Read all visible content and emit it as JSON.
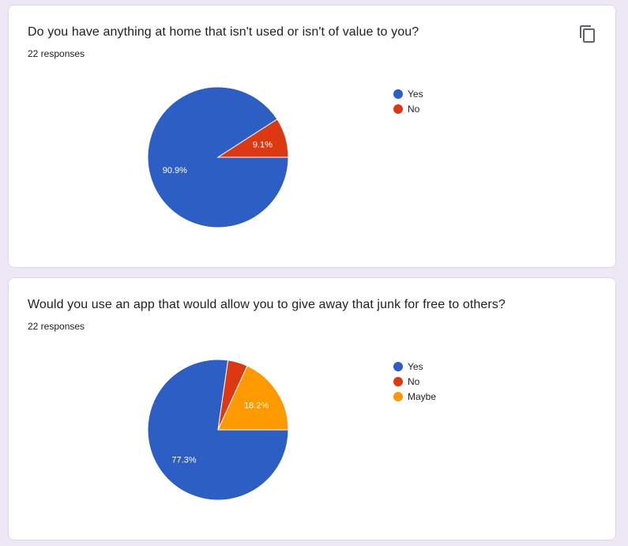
{
  "icons": {
    "copy": "copy-icon"
  },
  "chart_data": [
    {
      "type": "pie",
      "title": "Do you have anything at home that isn't used or isn't of value to you?",
      "responses_label": "22 responses",
      "categories": [
        "Yes",
        "No"
      ],
      "values": [
        20,
        2
      ],
      "labels": [
        "90.9%",
        "9.1%"
      ],
      "colors": [
        "#2c5ec4",
        "#dc3912"
      ],
      "legend_position": "right"
    },
    {
      "type": "pie",
      "title": "Would you use an app that would allow you to give away that junk for free to others?",
      "responses_label": "22 responses",
      "categories": [
        "Yes",
        "No",
        "Maybe"
      ],
      "values": [
        17,
        1,
        4
      ],
      "labels": [
        "77.3%",
        "",
        "18.2%"
      ],
      "colors": [
        "#2c5ec4",
        "#dc3912",
        "#ff9900"
      ],
      "legend_position": "right"
    }
  ]
}
